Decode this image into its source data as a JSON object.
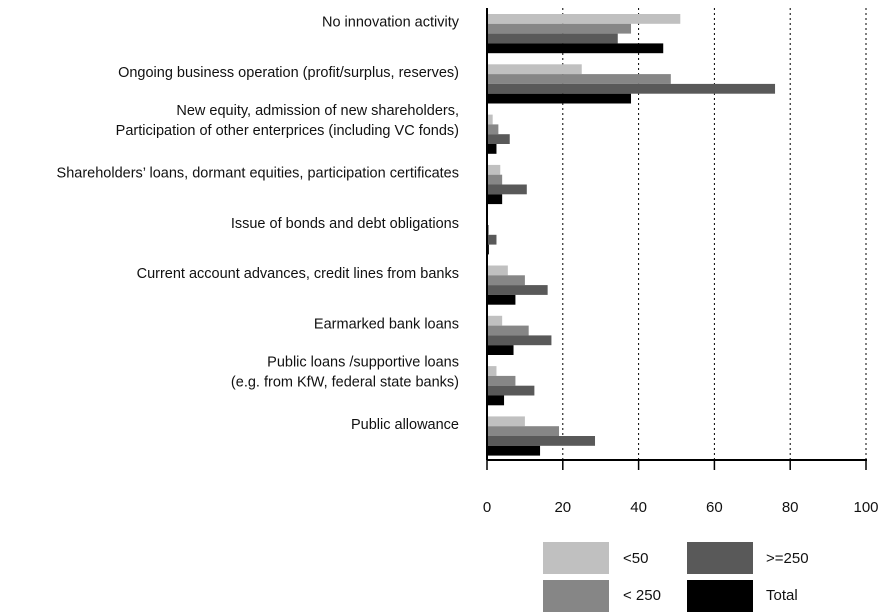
{
  "chart_data": {
    "type": "bar",
    "orientation": "horizontal",
    "categories": [
      [
        "No innovation activity"
      ],
      [
        "Ongoing business operation (profit/surplus, reserves)"
      ],
      [
        "New equity, admission of new shareholders,",
        "Participation of other enterprices (including VC fonds)"
      ],
      [
        "Shareholders’ loans, dormant equities, participation certificates"
      ],
      [
        "Issue of bonds and debt obligations"
      ],
      [
        "Current account advances, credit lines from banks"
      ],
      [
        "Earmarked bank loans"
      ],
      [
        "Public loans /supportive loans",
        "(e.g. from KfW, federal state banks)"
      ],
      [
        "Public allowance"
      ]
    ],
    "series": [
      {
        "name": "<50",
        "color": "#c0c0c0",
        "values": [
          51,
          25,
          1.5,
          3.5,
          0,
          5.5,
          4,
          2.5,
          10
        ]
      },
      {
        "name": "< 250",
        "color": "#868686",
        "values": [
          38,
          48.5,
          3,
          4,
          0.5,
          10,
          11,
          7.5,
          19
        ]
      },
      {
        "name": ">=250",
        "color": "#595959",
        "values": [
          34.5,
          76,
          6,
          10.5,
          2.5,
          16,
          17,
          12.5,
          28.5
        ]
      },
      {
        "name": "Total",
        "color": "#000000",
        "values": [
          46.5,
          38,
          2.5,
          4,
          0.5,
          7.5,
          7,
          4.5,
          14
        ]
      }
    ],
    "xlim": [
      0,
      100
    ],
    "xticks": [
      0,
      20,
      40,
      60,
      80,
      100
    ],
    "grid": "vertical dotted at ticks",
    "legend": {
      "placement": "bottom-right",
      "order": [
        "<50",
        ">=250",
        "< 250",
        "Total"
      ]
    }
  }
}
